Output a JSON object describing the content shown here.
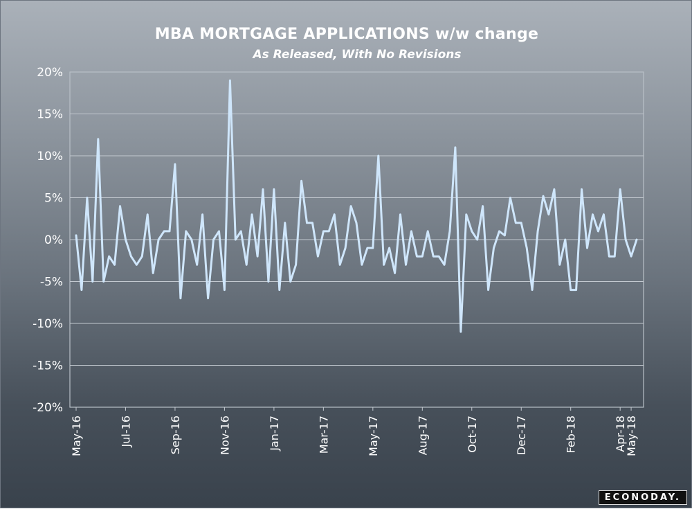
{
  "chart_data": {
    "type": "line",
    "title": "MBA MORTGAGE APPLICATIONS w/w change",
    "subtitle": "As Released, With No Revisions",
    "xlabel": "",
    "ylabel": "",
    "ylim": [
      -20,
      20
    ],
    "y_ticks": [
      "20%",
      "15%",
      "10%",
      "5%",
      "0%",
      "-5%",
      "-10%",
      "-15%",
      "-20%"
    ],
    "y_tick_values": [
      20,
      15,
      10,
      5,
      0,
      -5,
      -10,
      -15,
      -20
    ],
    "x_tick_labels": [
      "May-16",
      "Jul-16",
      "Sep-16",
      "Nov-16",
      "Jan-17",
      "Mar-17",
      "May-17",
      "Aug-17",
      "Oct-17",
      "Dec-17",
      "Feb-18",
      "Apr-18",
      "May-18"
    ],
    "x_tick_index": [
      0,
      9,
      18,
      27,
      36,
      45,
      54,
      63,
      72,
      81,
      90,
      99,
      101
    ],
    "grid": true,
    "line_color": "#cfe6fb",
    "series": [
      {
        "values": [
          0.5,
          -6,
          5,
          -5,
          12,
          -5,
          -2,
          -3,
          4,
          0,
          -2,
          -3,
          -2,
          3,
          -4,
          0,
          1,
          1,
          9,
          -7,
          1,
          0,
          -3,
          3,
          -7,
          0,
          1,
          -6,
          19,
          0,
          1,
          -3,
          3,
          -2,
          6,
          -5,
          6,
          -6,
          2,
          -5,
          -3,
          7,
          2,
          2,
          -2,
          1,
          1,
          3,
          -3,
          -1,
          4,
          2,
          -3,
          -1,
          -1,
          10,
          -3,
          -1,
          -4,
          3,
          -3,
          1,
          -2,
          -2,
          1,
          -2,
          -2,
          -3,
          1,
          11,
          -11,
          3,
          1,
          0,
          4,
          -6,
          -1,
          1,
          0.5,
          5,
          2,
          2,
          -1,
          -6,
          1,
          5.2,
          3,
          6,
          -3,
          0,
          -6,
          -6,
          6,
          -1,
          3,
          1,
          3,
          -2,
          -2,
          6,
          0,
          -2,
          0
        ]
      }
    ]
  },
  "brand": "ECONODAY."
}
